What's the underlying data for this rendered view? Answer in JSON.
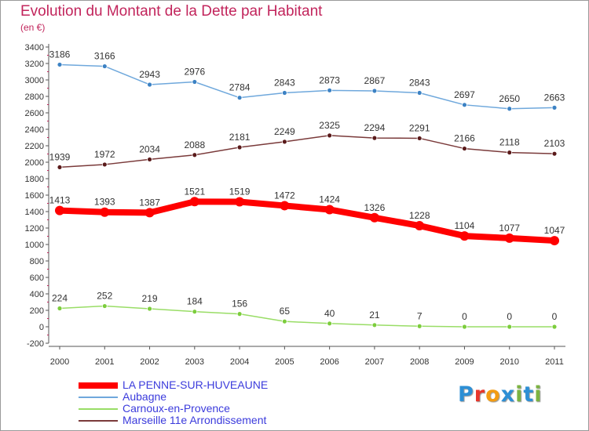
{
  "header": {
    "title": "Evolution du Montant de la Dette par Habitant",
    "subtitle": "(en €)"
  },
  "logo": {
    "text": "Proxiti",
    "letters": [
      "P",
      "r",
      "o",
      "x",
      "i",
      "t",
      "i"
    ],
    "colors": [
      "#2d8fd5",
      "#e8362b",
      "#f39c12",
      "#2d8fd5",
      "#7cb342",
      "#2d8fd5",
      "#7cb342"
    ]
  },
  "chart_data": {
    "type": "line",
    "x": [
      "2000",
      "2001",
      "2002",
      "2003",
      "2004",
      "2005",
      "2006",
      "2007",
      "2008",
      "2009",
      "2010",
      "2011"
    ],
    "yticks": [
      "-200",
      "0",
      "200",
      "400",
      "600",
      "800",
      "1000",
      "1200",
      "1400",
      "1600",
      "1800",
      "2000",
      "2200",
      "2400",
      "2600",
      "2800",
      "3000",
      "3200",
      "3400"
    ],
    "ylim": [
      -200,
      3400
    ],
    "grid": false,
    "legend_position": "bottom-left",
    "series": [
      {
        "name": "LA PENNE-SUR-HUVEAUNE",
        "color": "#ff0000",
        "values": [
          1413,
          1393,
          1387,
          1521,
          1519,
          1472,
          1424,
          1326,
          1228,
          1104,
          1077,
          1047
        ],
        "labels": [
          "1413",
          "1393",
          "1387",
          "1521",
          "1519",
          "1472",
          "1424",
          "1326",
          "1228",
          "1104",
          "1077",
          "1047"
        ]
      },
      {
        "name": "Aubagne",
        "color": "#6fa8dc",
        "values": [
          3186,
          3166,
          2943,
          2976,
          2784,
          2843,
          2873,
          2867,
          2843,
          2697,
          2650,
          2663
        ],
        "labels": [
          "3186",
          "3166",
          "2943",
          "2976",
          "2784",
          "2843",
          "2873",
          "2867",
          "2843",
          "2697",
          "2650",
          "2663"
        ]
      },
      {
        "name": "Carnoux-en-Provence",
        "color": "#99dd66",
        "values": [
          224,
          252,
          219,
          184,
          156,
          65,
          40,
          21,
          7,
          0,
          0,
          0
        ],
        "labels": [
          "224",
          "252",
          "219",
          "184",
          "156",
          "65",
          "40",
          "21",
          "7",
          "0",
          "0",
          "0"
        ]
      },
      {
        "name": "Marseille  11e  Arrondissement",
        "color": "#7a3a3a",
        "values": [
          1939,
          1972,
          2034,
          2088,
          2181,
          2249,
          2325,
          2294,
          2291,
          2166,
          2118,
          2103
        ],
        "labels": [
          "1939",
          "1972",
          "2034",
          "2088",
          "2181",
          "2249",
          "2325",
          "2294",
          "2291",
          "2166",
          "2118",
          "2103"
        ]
      }
    ]
  }
}
